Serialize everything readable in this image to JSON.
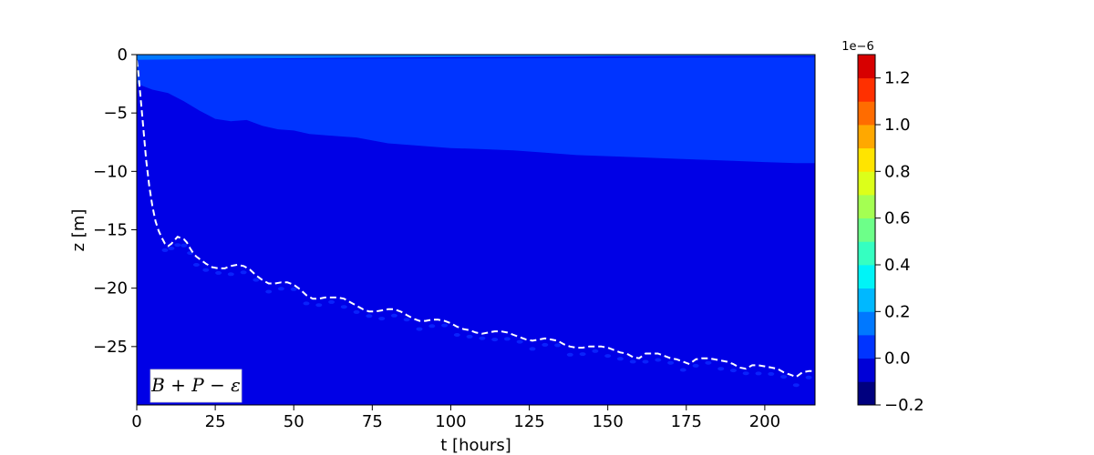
{
  "chart_data": {
    "type": "heatmap",
    "title": "",
    "xlabel": "t [hours]",
    "ylabel": "z [m]",
    "xlim": [
      0,
      216
    ],
    "ylim": [
      -30,
      0
    ],
    "xticks": [
      0,
      25,
      50,
      75,
      100,
      125,
      150,
      175,
      200
    ],
    "xtick_labels": [
      "0",
      "25",
      "50",
      "75",
      "100",
      "125",
      "150",
      "175",
      "200"
    ],
    "yticks": [
      0,
      -5,
      -10,
      -15,
      -20,
      -25
    ],
    "ytick_labels": [
      "0",
      "−5",
      "−10",
      "−15",
      "−20",
      "−25"
    ],
    "annotation": "B + P − ε",
    "grid": false,
    "colorbar": {
      "offset_label": "1e−6",
      "vmin": -0.2,
      "vmax": 1.3,
      "levels": [
        -0.2,
        -0.1,
        0.0,
        0.1,
        0.2,
        0.3,
        0.4,
        0.5,
        0.6,
        0.7,
        0.8,
        0.9,
        1.0,
        1.1,
        1.2,
        1.3
      ],
      "colors": [
        "#00007f",
        "#0000d7",
        "#0034ff",
        "#0078ff",
        "#00b8ff",
        "#00f4f7",
        "#35ffc1",
        "#6dff89",
        "#a4ff52",
        "#dcff1a",
        "#ffe400",
        "#ffa800",
        "#ff6c00",
        "#ff3000",
        "#d70000"
      ],
      "ticks": [
        -0.2,
        0.0,
        0.2,
        0.4,
        0.6,
        0.8,
        1.0,
        1.2
      ],
      "tick_labels": [
        "−0.2",
        "0.0",
        "0.2",
        "0.4",
        "0.6",
        "0.8",
        "1.0",
        "1.2"
      ]
    },
    "background_color": "#0000e6",
    "regions": [
      {
        "level_color": "#0034ff",
        "description": "upper layer, values 0.0–0.1",
        "upper_boundary": [
          [
            0,
            -0.4
          ],
          [
            216,
            -0.2
          ]
        ],
        "lower_boundary": [
          [
            0,
            -2.5
          ],
          [
            3,
            -2.8
          ],
          [
            5,
            -3.0
          ],
          [
            10,
            -3.3
          ],
          [
            15,
            -4.0
          ],
          [
            20,
            -4.8
          ],
          [
            25,
            -5.5
          ],
          [
            30,
            -5.7
          ],
          [
            35,
            -5.6
          ],
          [
            40,
            -6.1
          ],
          [
            45,
            -6.4
          ],
          [
            50,
            -6.5
          ],
          [
            55,
            -6.8
          ],
          [
            60,
            -6.9
          ],
          [
            70,
            -7.1
          ],
          [
            80,
            -7.6
          ],
          [
            90,
            -7.8
          ],
          [
            100,
            -8.0
          ],
          [
            110,
            -8.1
          ],
          [
            120,
            -8.2
          ],
          [
            130,
            -8.4
          ],
          [
            140,
            -8.6
          ],
          [
            150,
            -8.7
          ],
          [
            160,
            -8.8
          ],
          [
            170,
            -8.9
          ],
          [
            180,
            -9.0
          ],
          [
            190,
            -9.1
          ],
          [
            200,
            -9.2
          ],
          [
            210,
            -9.3
          ],
          [
            216,
            -9.3
          ]
        ]
      },
      {
        "level_color": "#0078ff",
        "description": "thin surface band, values 0.1–0.2",
        "upper_boundary": [
          [
            0,
            0
          ],
          [
            216,
            0
          ]
        ],
        "lower_boundary": [
          [
            0,
            -0.45
          ],
          [
            30,
            -0.35
          ],
          [
            80,
            -0.25
          ],
          [
            150,
            -0.15
          ],
          [
            216,
            -0.1
          ]
        ]
      }
    ],
    "series": [
      {
        "style": "dashed",
        "color": "#ffffff",
        "x": [
          0,
          0.5,
          1,
          2,
          3,
          4,
          5,
          6,
          7,
          8,
          9,
          10,
          11,
          12,
          13,
          14,
          15,
          16,
          17,
          18,
          19,
          20,
          22,
          24,
          26,
          28,
          30,
          32,
          34,
          36,
          38,
          40,
          42,
          44,
          46,
          48,
          50,
          52,
          54,
          56,
          58,
          60,
          62,
          64,
          66,
          68,
          70,
          72,
          74,
          76,
          78,
          80,
          82,
          84,
          86,
          88,
          90,
          92,
          94,
          96,
          98,
          100,
          102,
          104,
          106,
          108,
          110,
          112,
          114,
          116,
          118,
          120,
          122,
          124,
          126,
          128,
          130,
          132,
          134,
          136,
          138,
          140,
          142,
          144,
          146,
          148,
          150,
          152,
          154,
          156,
          158,
          160,
          162,
          164,
          166,
          168,
          170,
          172,
          174,
          176,
          178,
          180,
          182,
          184,
          186,
          188,
          190,
          192,
          194,
          196,
          198,
          200,
          202,
          204,
          206,
          208,
          210,
          212,
          214,
          216
        ],
        "y": [
          -0.5,
          -1.5,
          -3.0,
          -6.0,
          -9.0,
          -11.3,
          -13.0,
          -14.3,
          -15.1,
          -15.7,
          -16.2,
          -16.4,
          -16.2,
          -15.9,
          -15.6,
          -15.7,
          -15.8,
          -16.1,
          -16.6,
          -17.0,
          -17.3,
          -17.5,
          -17.9,
          -18.2,
          -18.3,
          -18.3,
          -18.1,
          -18.0,
          -18.1,
          -18.4,
          -18.9,
          -19.3,
          -19.6,
          -19.6,
          -19.5,
          -19.5,
          -19.7,
          -20.1,
          -20.6,
          -20.9,
          -20.9,
          -20.8,
          -20.8,
          -20.8,
          -20.9,
          -21.2,
          -21.5,
          -21.8,
          -22.0,
          -22.0,
          -21.9,
          -21.8,
          -21.8,
          -22.0,
          -22.3,
          -22.6,
          -22.8,
          -22.8,
          -22.7,
          -22.7,
          -22.8,
          -23.0,
          -23.3,
          -23.5,
          -23.6,
          -23.8,
          -23.9,
          -23.8,
          -23.7,
          -23.7,
          -23.8,
          -24.0,
          -24.2,
          -24.4,
          -24.5,
          -24.4,
          -24.3,
          -24.4,
          -24.5,
          -24.8,
          -25.0,
          -25.1,
          -25.1,
          -25.0,
          -25.0,
          -25.0,
          -25.1,
          -25.3,
          -25.5,
          -25.6,
          -25.9,
          -26.0,
          -25.6,
          -25.6,
          -25.6,
          -25.8,
          -26.0,
          -26.1,
          -26.3,
          -26.5,
          -26.1,
          -26.0,
          -26.0,
          -26.1,
          -26.2,
          -26.3,
          -26.5,
          -26.8,
          -26.9,
          -26.6,
          -26.6,
          -26.7,
          -26.8,
          -26.9,
          -27.2,
          -27.4,
          -27.6,
          -27.2,
          -27.1,
          -27.1
        ]
      }
    ]
  }
}
